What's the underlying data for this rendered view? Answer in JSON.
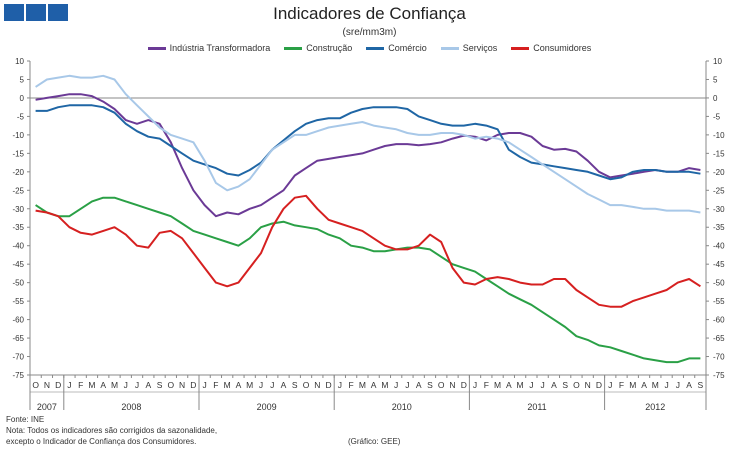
{
  "header": {
    "title": "Indicadores de Confiança",
    "subtitle": "(sre/mm3m)"
  },
  "footer": {
    "source": "Fonte: INE",
    "note_line1": "Nota: Todos os indicadores são corrigidos da sazonalidade,",
    "note_line2": "excepto o Indicador de Confiança dos Consumidores.",
    "credit": "(Gráfico: GEE)"
  },
  "colors": {
    "logo": "#1f5fa8",
    "industria": "#6b3a96",
    "construcao": "#2aa046",
    "comercio": "#1f66a5",
    "servicos": "#a8c8e8",
    "consumidores": "#d62020"
  },
  "chart_data": {
    "type": "line",
    "title": "Indicadores de Confiança",
    "subtitle": "(sre/mm3m)",
    "ylim": [
      -75,
      10
    ],
    "yticks": [
      10,
      5,
      0,
      -5,
      -10,
      -15,
      -20,
      -25,
      -30,
      -35,
      -40,
      -45,
      -50,
      -55,
      -60,
      -65,
      -70,
      -75
    ],
    "months": [
      "O",
      "N",
      "D",
      "J",
      "F",
      "M",
      "A",
      "M",
      "J",
      "J",
      "A",
      "S",
      "O",
      "N",
      "D",
      "J",
      "F",
      "M",
      "A",
      "M",
      "J",
      "J",
      "A",
      "S",
      "O",
      "N",
      "D",
      "J",
      "F",
      "M",
      "A",
      "M",
      "J",
      "J",
      "A",
      "S",
      "O",
      "N",
      "D",
      "J",
      "F",
      "M",
      "A",
      "M",
      "J",
      "J",
      "A",
      "S",
      "O",
      "N",
      "D",
      "J",
      "F",
      "M",
      "A",
      "M",
      "J",
      "J",
      "A",
      "S"
    ],
    "years": [
      {
        "label": "2007",
        "start": 0,
        "end": 2
      },
      {
        "label": "2008",
        "start": 3,
        "end": 14
      },
      {
        "label": "2009",
        "start": 15,
        "end": 26
      },
      {
        "label": "2010",
        "start": 27,
        "end": 38
      },
      {
        "label": "2011",
        "start": 39,
        "end": 50
      },
      {
        "label": "2012",
        "start": 51,
        "end": 59
      }
    ],
    "legend_position": "top",
    "grid": false,
    "series": [
      {
        "name": "Indústria Transformadora",
        "color": "#6b3a96",
        "values": [
          -0.5,
          0,
          0.5,
          1,
          1,
          0.5,
          -1,
          -3,
          -6,
          -7,
          -6,
          -7,
          -12,
          -19,
          -25,
          -29,
          -32,
          -31,
          -31.5,
          -30,
          -29,
          -27,
          -25,
          -21,
          -19,
          -17,
          -16.5,
          -16,
          -15.5,
          -15,
          -14,
          -13,
          -12.5,
          -12.5,
          -12.8,
          -12.5,
          -12,
          -11,
          -10.2,
          -10.5,
          -11.5,
          -10,
          -9.5,
          -9.5,
          -10.5,
          -13,
          -14,
          -13.8,
          -14.5,
          -17,
          -20,
          -21.5,
          -21,
          -20.5,
          -20,
          -19.5,
          -20,
          -20,
          -19,
          -19.5
        ]
      },
      {
        "name": "Construção",
        "color": "#2aa046",
        "values": [
          -29,
          -31,
          -32,
          -32,
          -30,
          -28,
          -27,
          -27,
          -28,
          -29,
          -30,
          -31,
          -32,
          -34,
          -36,
          -37,
          -38,
          -39,
          -40,
          -38,
          -35,
          -34,
          -33.5,
          -34.5,
          -35,
          -35.5,
          -37,
          -38,
          -40,
          -40.5,
          -41.5,
          -41.5,
          -41,
          -40.5,
          -40.5,
          -41,
          -43,
          -45,
          -46,
          -47,
          -49,
          -51,
          -53,
          -54.5,
          -56,
          -58,
          -60,
          -62,
          -64.5,
          -65.5,
          -67,
          -67.5,
          -68.5,
          -69.5,
          -70.5,
          -71,
          -71.5,
          -71.5,
          -70.5,
          -70.5
        ]
      },
      {
        "name": "Comércio",
        "color": "#1f66a5",
        "values": [
          -3.5,
          -3.5,
          -2.5,
          -2,
          -2,
          -2,
          -2.5,
          -4,
          -7,
          -9,
          -10.5,
          -11,
          -13,
          -15,
          -17,
          -18,
          -19,
          -20.5,
          -21,
          -19.5,
          -17.5,
          -14,
          -11.5,
          -9,
          -7,
          -6,
          -5.5,
          -5.5,
          -4,
          -3,
          -2.5,
          -2.5,
          -2.5,
          -3,
          -5,
          -6,
          -7,
          -7.5,
          -7.5,
          -7,
          -7.5,
          -8.5,
          -14,
          -16,
          -17.5,
          -18,
          -18.5,
          -19,
          -19.5,
          -20,
          -21,
          -22,
          -21.5,
          -20,
          -19.5,
          -19.5,
          -20,
          -20,
          -20,
          -20.5
        ]
      },
      {
        "name": "Serviços",
        "color": "#a8c8e8",
        "values": [
          3,
          5,
          5.5,
          6,
          5.5,
          5.5,
          6,
          5,
          1,
          -2,
          -5,
          -8,
          -10,
          -11,
          -12,
          -17,
          -23,
          -25,
          -24,
          -22,
          -18,
          -14,
          -12,
          -10,
          -10,
          -9,
          -8,
          -7.5,
          -7,
          -6.5,
          -7.5,
          -8,
          -8.5,
          -9.5,
          -10,
          -10,
          -9.5,
          -9.5,
          -10,
          -11,
          -10.5,
          -11,
          -12,
          -14,
          -16,
          -18,
          -20,
          -22,
          -24,
          -26,
          -27.5,
          -29,
          -29,
          -29.5,
          -30,
          -30,
          -30.5,
          -30.5,
          -30.5,
          -31
        ]
      },
      {
        "name": "Consumidores",
        "color": "#d62020",
        "values": [
          -30.5,
          -31,
          -32,
          -35,
          -36.5,
          -37,
          -36,
          -35,
          -37,
          -40,
          -40.5,
          -36.5,
          -36,
          -38,
          -42,
          -46,
          -50,
          -51,
          -50,
          -46,
          -42,
          -35,
          -30,
          -27,
          -26.5,
          -30,
          -33,
          -34,
          -35,
          -36,
          -38,
          -40,
          -41,
          -41,
          -40,
          -37,
          -39,
          -46,
          -50,
          -50.5,
          -49,
          -48.5,
          -49,
          -50,
          -50.5,
          -50.5,
          -49,
          -49,
          -52,
          -54,
          -56,
          -56.5,
          -56.5,
          -55,
          -54,
          -53,
          -52,
          -50,
          -49,
          -51
        ]
      }
    ]
  }
}
